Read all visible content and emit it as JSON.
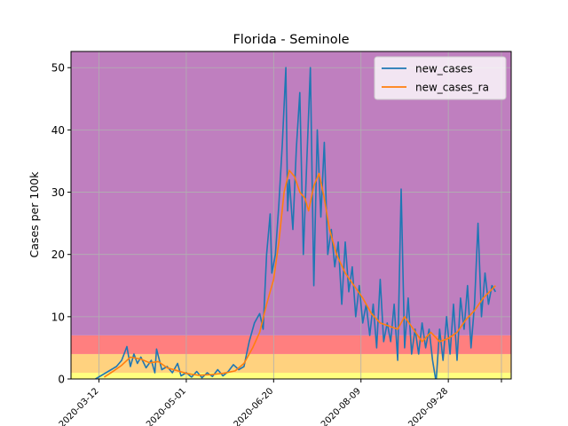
{
  "chart_data": {
    "type": "line",
    "title": "Florida - Seminole",
    "xlabel": "",
    "ylabel": "Cases per 100k",
    "xlim": [
      "2020-02-25",
      "2020-11-03"
    ],
    "ylim": [
      0,
      52.6
    ],
    "x_ticks": [
      "2020-03-12",
      "2020-05-01",
      "2020-06-20",
      "2020-08-09",
      "2020-09-28"
    ],
    "y_ticks": [
      0,
      10,
      20,
      30,
      40,
      50
    ],
    "grid": true,
    "legend_placement": "top-right",
    "risk_bands": [
      {
        "from": 0,
        "to": 1,
        "color": "#ffff7f"
      },
      {
        "from": 1,
        "to": 4,
        "color": "#ffd27f"
      },
      {
        "from": 4,
        "to": 7,
        "color": "#ff7f7f"
      },
      {
        "from": 7,
        "to": 52.6,
        "color": "#bf7fbf"
      }
    ],
    "series": [
      {
        "name": "new_cases",
        "color": "#1f77b4",
        "points": [
          [
            "2020-03-10",
            0
          ],
          [
            "2020-03-13",
            0.5
          ],
          [
            "2020-03-16",
            1
          ],
          [
            "2020-03-19",
            1.5
          ],
          [
            "2020-03-22",
            2
          ],
          [
            "2020-03-25",
            3
          ],
          [
            "2020-03-28",
            5.2
          ],
          [
            "2020-03-30",
            2
          ],
          [
            "2020-04-01",
            4
          ],
          [
            "2020-04-03",
            2.5
          ],
          [
            "2020-04-05",
            3.5
          ],
          [
            "2020-04-08",
            1.8
          ],
          [
            "2020-04-11",
            3
          ],
          [
            "2020-04-13",
            1
          ],
          [
            "2020-04-14",
            4.8
          ],
          [
            "2020-04-17",
            1.5
          ],
          [
            "2020-04-20",
            2
          ],
          [
            "2020-04-23",
            1
          ],
          [
            "2020-04-26",
            2.5
          ],
          [
            "2020-04-28",
            0.5
          ],
          [
            "2020-05-01",
            1
          ],
          [
            "2020-05-04",
            0.3
          ],
          [
            "2020-05-07",
            1.2
          ],
          [
            "2020-05-10",
            0.2
          ],
          [
            "2020-05-13",
            1
          ],
          [
            "2020-05-16",
            0.4
          ],
          [
            "2020-05-19",
            1.5
          ],
          [
            "2020-05-22",
            0.5
          ],
          [
            "2020-05-25",
            1.2
          ],
          [
            "2020-05-28",
            2.3
          ],
          [
            "2020-05-31",
            1.5
          ],
          [
            "2020-06-03",
            2
          ],
          [
            "2020-06-06",
            6
          ],
          [
            "2020-06-09",
            9
          ],
          [
            "2020-06-12",
            10.5
          ],
          [
            "2020-06-14",
            8
          ],
          [
            "2020-06-16",
            20
          ],
          [
            "2020-06-18",
            26.5
          ],
          [
            "2020-06-19",
            17
          ],
          [
            "2020-06-21",
            20
          ],
          [
            "2020-06-23",
            28
          ],
          [
            "2020-06-25",
            38
          ],
          [
            "2020-06-27",
            50
          ],
          [
            "2020-06-28",
            27
          ],
          [
            "2020-06-29",
            32
          ],
          [
            "2020-07-01",
            24
          ],
          [
            "2020-07-03",
            37
          ],
          [
            "2020-07-05",
            46
          ],
          [
            "2020-07-07",
            20
          ],
          [
            "2020-07-09",
            35
          ],
          [
            "2020-07-11",
            50
          ],
          [
            "2020-07-13",
            15
          ],
          [
            "2020-07-15",
            40
          ],
          [
            "2020-07-17",
            26
          ],
          [
            "2020-07-19",
            38
          ],
          [
            "2020-07-21",
            20
          ],
          [
            "2020-07-23",
            24
          ],
          [
            "2020-07-25",
            18
          ],
          [
            "2020-07-27",
            22
          ],
          [
            "2020-07-29",
            12
          ],
          [
            "2020-07-31",
            22
          ],
          [
            "2020-08-02",
            14
          ],
          [
            "2020-08-04",
            18
          ],
          [
            "2020-08-06",
            10
          ],
          [
            "2020-08-08",
            15
          ],
          [
            "2020-08-10",
            9
          ],
          [
            "2020-08-12",
            12
          ],
          [
            "2020-08-14",
            7
          ],
          [
            "2020-08-16",
            12
          ],
          [
            "2020-08-18",
            5
          ],
          [
            "2020-08-20",
            16
          ],
          [
            "2020-08-22",
            6
          ],
          [
            "2020-08-24",
            9
          ],
          [
            "2020-08-26",
            6
          ],
          [
            "2020-08-28",
            12
          ],
          [
            "2020-08-30",
            3
          ],
          [
            "2020-09-01",
            30.5
          ],
          [
            "2020-09-03",
            5
          ],
          [
            "2020-09-05",
            13
          ],
          [
            "2020-09-07",
            4
          ],
          [
            "2020-09-09",
            8
          ],
          [
            "2020-09-11",
            4
          ],
          [
            "2020-09-13",
            9
          ],
          [
            "2020-09-15",
            5
          ],
          [
            "2020-09-17",
            8
          ],
          [
            "2020-09-19",
            3
          ],
          [
            "2020-09-21",
            -0.5
          ],
          [
            "2020-09-23",
            8
          ],
          [
            "2020-09-25",
            3
          ],
          [
            "2020-09-27",
            10
          ],
          [
            "2020-09-29",
            4
          ],
          [
            "2020-10-01",
            12
          ],
          [
            "2020-10-03",
            3
          ],
          [
            "2020-10-05",
            13
          ],
          [
            "2020-10-07",
            8
          ],
          [
            "2020-10-09",
            15
          ],
          [
            "2020-10-11",
            5
          ],
          [
            "2020-10-13",
            12
          ],
          [
            "2020-10-15",
            25
          ],
          [
            "2020-10-17",
            10
          ],
          [
            "2020-10-19",
            17
          ],
          [
            "2020-10-21",
            12
          ],
          [
            "2020-10-23",
            15
          ],
          [
            "2020-10-25",
            14
          ]
        ]
      },
      {
        "name": "new_cases_ra",
        "color": "#ff7f0e",
        "points": [
          [
            "2020-03-15",
            0.3
          ],
          [
            "2020-03-20",
            1.2
          ],
          [
            "2020-03-25",
            2.2
          ],
          [
            "2020-03-30",
            3.5
          ],
          [
            "2020-04-05",
            3.2
          ],
          [
            "2020-04-10",
            2.6
          ],
          [
            "2020-04-15",
            2.8
          ],
          [
            "2020-04-20",
            1.8
          ],
          [
            "2020-04-25",
            1.4
          ],
          [
            "2020-05-01",
            0.9
          ],
          [
            "2020-05-08",
            0.6
          ],
          [
            "2020-05-15",
            0.7
          ],
          [
            "2020-05-22",
            0.9
          ],
          [
            "2020-05-29",
            1.3
          ],
          [
            "2020-06-03",
            2.5
          ],
          [
            "2020-06-08",
            5
          ],
          [
            "2020-06-12",
            7.5
          ],
          [
            "2020-06-16",
            12
          ],
          [
            "2020-06-20",
            16
          ],
          [
            "2020-06-23",
            22
          ],
          [
            "2020-06-26",
            30
          ],
          [
            "2020-06-29",
            33.5
          ],
          [
            "2020-07-02",
            32.5
          ],
          [
            "2020-07-05",
            30
          ],
          [
            "2020-07-08",
            29
          ],
          [
            "2020-07-10",
            27
          ],
          [
            "2020-07-13",
            31
          ],
          [
            "2020-07-16",
            33
          ],
          [
            "2020-07-19",
            29
          ],
          [
            "2020-07-22",
            24
          ],
          [
            "2020-07-26",
            20
          ],
          [
            "2020-07-31",
            17
          ],
          [
            "2020-08-05",
            15
          ],
          [
            "2020-08-10",
            13
          ],
          [
            "2020-08-15",
            10.5
          ],
          [
            "2020-08-20",
            9
          ],
          [
            "2020-08-25",
            8.5
          ],
          [
            "2020-08-30",
            8
          ],
          [
            "2020-09-03",
            10
          ],
          [
            "2020-09-08",
            8
          ],
          [
            "2020-09-13",
            6
          ],
          [
            "2020-09-18",
            7.5
          ],
          [
            "2020-09-23",
            6
          ],
          [
            "2020-09-28",
            6.5
          ],
          [
            "2020-10-03",
            7.5
          ],
          [
            "2020-10-08",
            9.5
          ],
          [
            "2020-10-13",
            11
          ],
          [
            "2020-10-18",
            13
          ],
          [
            "2020-10-25",
            15
          ]
        ]
      }
    ]
  }
}
